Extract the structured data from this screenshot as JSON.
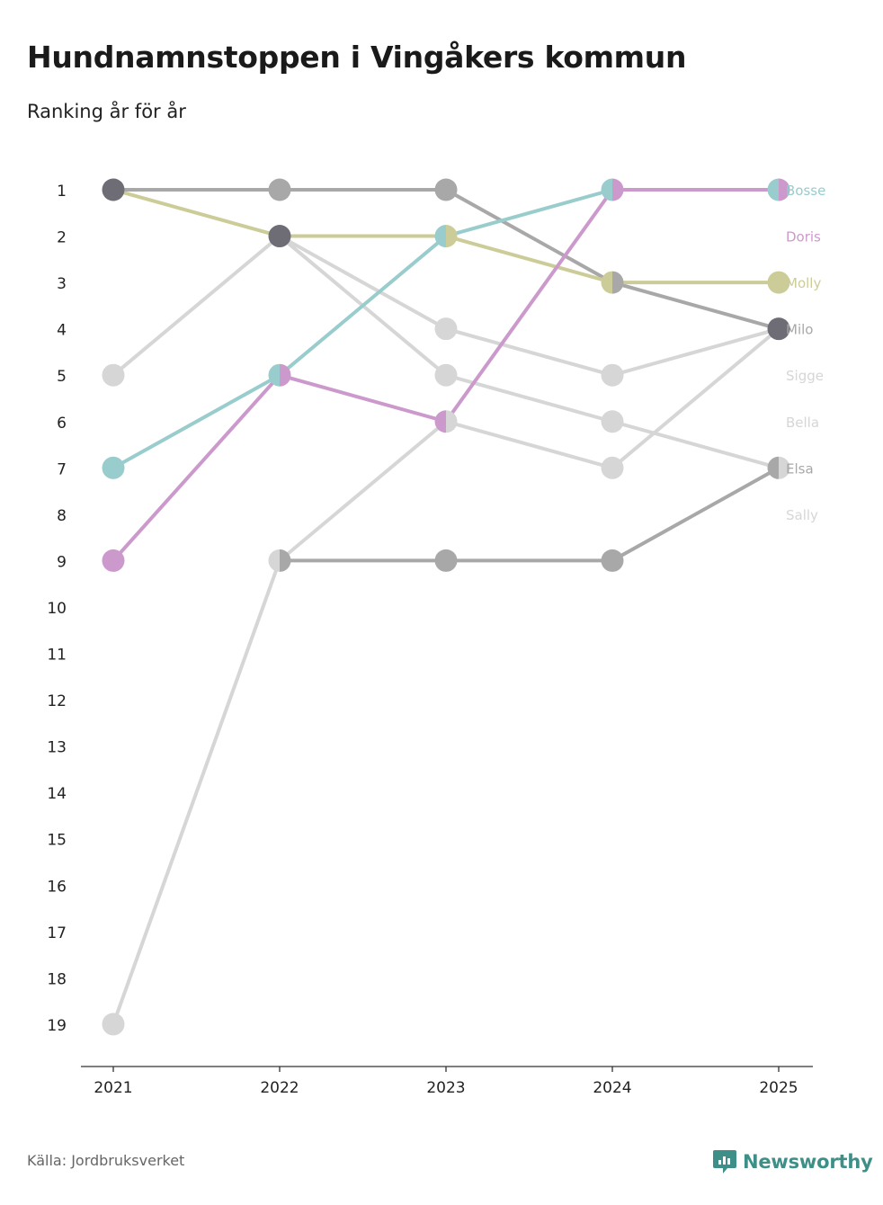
{
  "title": "Hundnamnstoppen i Vingåkers kommun",
  "subtitle": "Ranking år för år",
  "source": "Källa: Jordbruksverket",
  "brand": "Newsworthy",
  "chart_data": {
    "type": "line",
    "title": "Hundnamnstoppen i Vingåkers kommun",
    "subtitle": "Ranking år för år",
    "x": [
      "2021",
      "2022",
      "2023",
      "2024",
      "2025"
    ],
    "y_ticks": [
      "1",
      "2",
      "3",
      "4",
      "5",
      "6",
      "7",
      "8",
      "9",
      "10",
      "11",
      "12",
      "13",
      "14",
      "15",
      "16",
      "17",
      "18",
      "19"
    ],
    "ylim": [
      1,
      19
    ],
    "y_reversed": true,
    "xlabel": "",
    "ylabel": "",
    "series": [
      {
        "name": "Bella",
        "color": "#d6d6d6",
        "values": [
          5,
          2,
          4,
          5,
          4
        ],
        "label_rank": 6
      },
      {
        "name": "Sally",
        "color": "#d6d6d6",
        "values": [
          null,
          2,
          5,
          6,
          7
        ],
        "label_rank": 8
      },
      {
        "name": "Sigge",
        "color": "#d6d6d6",
        "values": [
          19,
          9,
          6,
          7,
          4
        ],
        "label_rank": 5
      },
      {
        "name": "Elsa",
        "color": "#a8a8a8",
        "values": [
          null,
          9,
          9,
          9,
          7
        ],
        "label_rank": 7
      },
      {
        "name": "Milo",
        "color": "#a8a8a8",
        "values": [
          1,
          1,
          1,
          3,
          4
        ],
        "label_rank": 4
      },
      {
        "name": "Molly",
        "color": "#cccc99",
        "values": [
          1,
          2,
          2,
          3,
          3
        ],
        "label_rank": 3
      },
      {
        "name": "Bosse",
        "color": "#99cccc",
        "values": [
          7,
          5,
          2,
          1,
          1
        ],
        "label_rank": 1
      },
      {
        "name": "Doris",
        "color": "#cc99cc",
        "values": [
          9,
          5,
          6,
          1,
          1
        ],
        "label_rank": 2
      }
    ],
    "markers": [
      {
        "year": "2021",
        "rank": 1,
        "colors": [
          "#6e6d75"
        ]
      },
      {
        "year": "2021",
        "rank": 5,
        "colors": [
          "#d6d6d6"
        ]
      },
      {
        "year": "2021",
        "rank": 7,
        "colors": [
          "#99cccc"
        ]
      },
      {
        "year": "2021",
        "rank": 9,
        "colors": [
          "#cc99cc"
        ]
      },
      {
        "year": "2021",
        "rank": 19,
        "colors": [
          "#d6d6d6"
        ]
      },
      {
        "year": "2022",
        "rank": 1,
        "colors": [
          "#a8a8a8"
        ]
      },
      {
        "year": "2022",
        "rank": 2,
        "colors": [
          "#6e6d75"
        ]
      },
      {
        "year": "2022",
        "rank": 5,
        "colors": [
          "#99cccc",
          "#cc99cc"
        ]
      },
      {
        "year": "2022",
        "rank": 9,
        "colors": [
          "#d6d6d6",
          "#a8a8a8"
        ]
      },
      {
        "year": "2023",
        "rank": 1,
        "colors": [
          "#a8a8a8"
        ]
      },
      {
        "year": "2023",
        "rank": 2,
        "colors": [
          "#99cccc",
          "#cccc99"
        ]
      },
      {
        "year": "2023",
        "rank": 4,
        "colors": [
          "#d6d6d6"
        ]
      },
      {
        "year": "2023",
        "rank": 5,
        "colors": [
          "#d6d6d6"
        ]
      },
      {
        "year": "2023",
        "rank": 6,
        "colors": [
          "#cc99cc",
          "#d6d6d6"
        ]
      },
      {
        "year": "2023",
        "rank": 9,
        "colors": [
          "#a8a8a8"
        ]
      },
      {
        "year": "2024",
        "rank": 1,
        "colors": [
          "#99cccc",
          "#cc99cc"
        ]
      },
      {
        "year": "2024",
        "rank": 3,
        "colors": [
          "#cccc99",
          "#a8a8a8"
        ]
      },
      {
        "year": "2024",
        "rank": 5,
        "colors": [
          "#d6d6d6"
        ]
      },
      {
        "year": "2024",
        "rank": 6,
        "colors": [
          "#d6d6d6"
        ]
      },
      {
        "year": "2024",
        "rank": 7,
        "colors": [
          "#d6d6d6"
        ]
      },
      {
        "year": "2024",
        "rank": 9,
        "colors": [
          "#a8a8a8"
        ]
      },
      {
        "year": "2025",
        "rank": 1,
        "colors": [
          "#99cccc",
          "#cc99cc"
        ]
      },
      {
        "year": "2025",
        "rank": 3,
        "colors": [
          "#cccc99"
        ]
      },
      {
        "year": "2025",
        "rank": 4,
        "colors": [
          "#6e6d75"
        ]
      },
      {
        "year": "2025",
        "rank": 7,
        "colors": [
          "#a8a8a8",
          "#d6d6d6"
        ]
      }
    ]
  }
}
